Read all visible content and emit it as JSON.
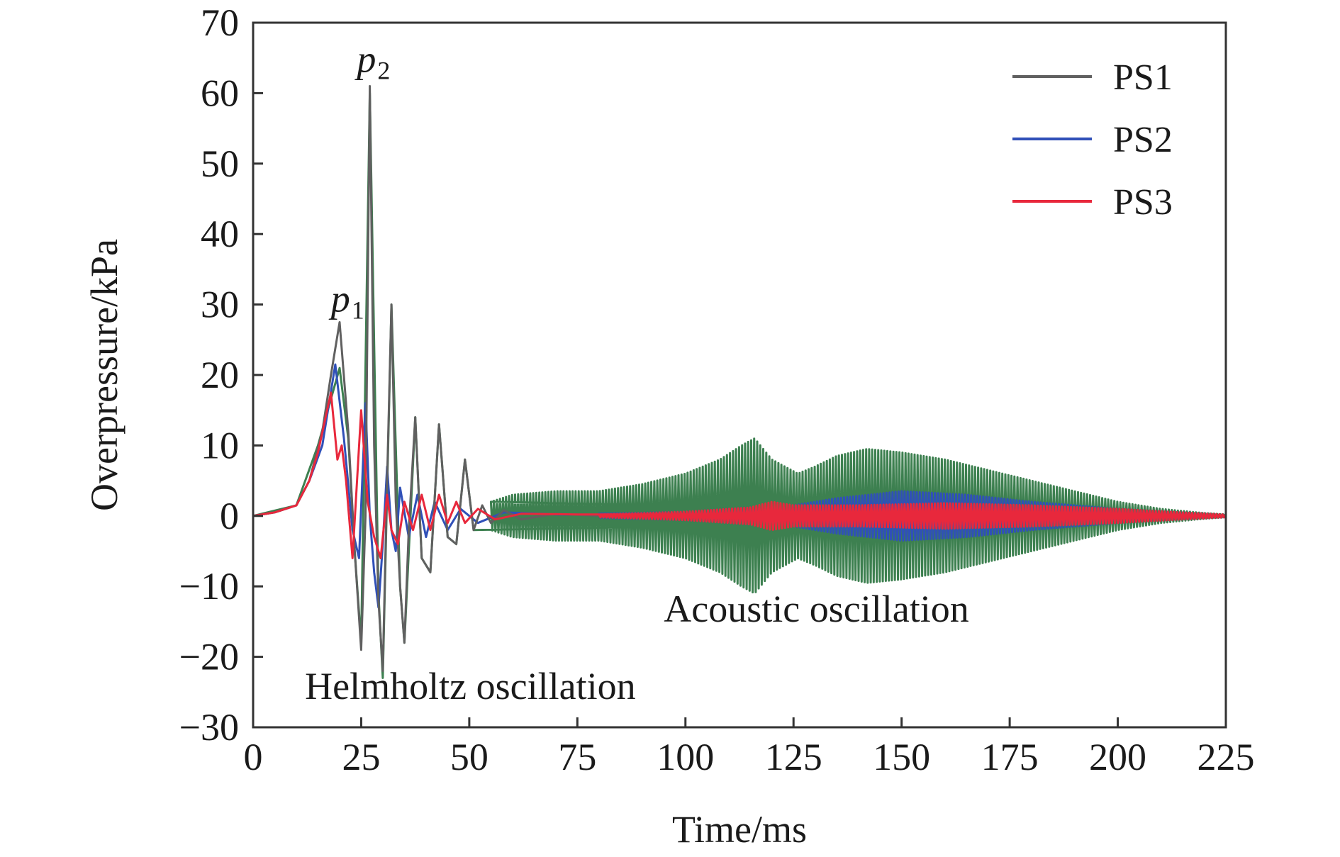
{
  "chart_data": {
    "type": "line",
    "xlabel": "Time/ms",
    "ylabel": "Overpressure/kPa",
    "xlim": [
      0,
      225
    ],
    "ylim": [
      -30,
      70
    ],
    "xticks": [
      0,
      25,
      50,
      75,
      100,
      125,
      150,
      175,
      200,
      225
    ],
    "yticks": [
      -30,
      -20,
      -10,
      0,
      10,
      20,
      30,
      40,
      50,
      60,
      70
    ],
    "xtick_labels": [
      "0",
      "25",
      "50",
      "75",
      "100",
      "125",
      "150",
      "175",
      "200",
      "225"
    ],
    "ytick_labels": [
      "−30",
      "−20",
      "−10",
      "0",
      "10",
      "20",
      "30",
      "40",
      "50",
      "60",
      "70"
    ],
    "legend_position": "top-right",
    "grid": false,
    "series": [
      {
        "name": "PS1",
        "color": "#606060",
        "points": [
          [
            0,
            0
          ],
          [
            5,
            0.5
          ],
          [
            10,
            1.5
          ],
          [
            13,
            5
          ],
          [
            16,
            12
          ],
          [
            18,
            20
          ],
          [
            20,
            27.5
          ],
          [
            22,
            12
          ],
          [
            23.5,
            -5
          ],
          [
            25,
            -19
          ],
          [
            26,
            0
          ],
          [
            27,
            61
          ],
          [
            28,
            10
          ],
          [
            29,
            -12
          ],
          [
            30,
            -22
          ],
          [
            31,
            5
          ],
          [
            32,
            30
          ],
          [
            33,
            2
          ],
          [
            34,
            -10
          ],
          [
            35,
            -18
          ],
          [
            36,
            -2
          ],
          [
            37.5,
            14
          ],
          [
            39,
            -6
          ],
          [
            41,
            -8
          ],
          [
            43,
            13
          ],
          [
            45,
            -3
          ],
          [
            47,
            -4
          ],
          [
            49,
            8
          ],
          [
            51,
            -2
          ],
          [
            53,
            1.5
          ],
          [
            55,
            -1
          ],
          [
            58,
            0.8
          ],
          [
            62,
            -0.5
          ],
          [
            70,
            0.3
          ],
          [
            80,
            0
          ],
          [
            100,
            0
          ],
          [
            225,
            0
          ]
        ]
      },
      {
        "name": "PS2",
        "color": "#3050b8",
        "points": [
          [
            0,
            0
          ],
          [
            5,
            0.5
          ],
          [
            10,
            1.5
          ],
          [
            13,
            5
          ],
          [
            16,
            10
          ],
          [
            19,
            21.5
          ],
          [
            21,
            11
          ],
          [
            23,
            -2
          ],
          [
            24.5,
            -6
          ],
          [
            26,
            16
          ],
          [
            27,
            0
          ],
          [
            28,
            -8
          ],
          [
            29,
            -13
          ],
          [
            30,
            -4
          ],
          [
            31,
            7
          ],
          [
            32,
            -2
          ],
          [
            33,
            -5
          ],
          [
            34,
            4
          ],
          [
            36,
            -3
          ],
          [
            38,
            3
          ],
          [
            40,
            -3
          ],
          [
            42,
            2
          ],
          [
            45,
            -2
          ],
          [
            48,
            1
          ],
          [
            52,
            -1
          ],
          [
            58,
            0.5
          ],
          [
            70,
            0.2
          ],
          [
            100,
            0.1
          ],
          [
            225,
            0
          ]
        ],
        "envelope": [
          [
            80,
            0.3
          ],
          [
            100,
            0.6
          ],
          [
            115,
            1.2
          ],
          [
            125,
            1.5
          ],
          [
            135,
            2.5
          ],
          [
            150,
            3.5
          ],
          [
            165,
            3
          ],
          [
            180,
            2
          ],
          [
            200,
            1
          ],
          [
            215,
            0.5
          ],
          [
            225,
            0.2
          ]
        ]
      },
      {
        "name": "PS3",
        "color": "#e8283c",
        "points": [
          [
            0,
            0
          ],
          [
            5,
            0.5
          ],
          [
            10,
            1.5
          ],
          [
            13,
            5
          ],
          [
            15,
            9
          ],
          [
            18,
            17.5
          ],
          [
            19.5,
            8
          ],
          [
            20.5,
            10
          ],
          [
            21.5,
            5
          ],
          [
            23,
            -6
          ],
          [
            25,
            15
          ],
          [
            26.5,
            2
          ],
          [
            28,
            -3
          ],
          [
            29.5,
            -6
          ],
          [
            31,
            3
          ],
          [
            32,
            -2
          ],
          [
            33.5,
            -4
          ],
          [
            35,
            2
          ],
          [
            37,
            -2
          ],
          [
            39,
            3
          ],
          [
            41,
            -2
          ],
          [
            43,
            3
          ],
          [
            45,
            -1
          ],
          [
            47,
            2
          ],
          [
            49,
            -1
          ],
          [
            52,
            1
          ],
          [
            56,
            -0.5
          ],
          [
            62,
            0.3
          ],
          [
            75,
            0.2
          ],
          [
            100,
            0.2
          ],
          [
            225,
            0
          ]
        ],
        "envelope": [
          [
            80,
            0.2
          ],
          [
            100,
            0.6
          ],
          [
            115,
            1.2
          ],
          [
            120,
            2
          ],
          [
            125,
            1.5
          ],
          [
            140,
            1.5
          ],
          [
            160,
            1.8
          ],
          [
            180,
            1.5
          ],
          [
            200,
            1
          ],
          [
            215,
            0.5
          ],
          [
            225,
            0.2
          ]
        ]
      },
      {
        "name": "",
        "color": "#3d8050",
        "points": [
          [
            0,
            0
          ],
          [
            10,
            1.5
          ],
          [
            15,
            10
          ],
          [
            20,
            21
          ],
          [
            22,
            11
          ],
          [
            23.5,
            -5
          ],
          [
            25,
            -18
          ],
          [
            27,
            60
          ],
          [
            29,
            -11
          ],
          [
            30,
            -23
          ],
          [
            32,
            30
          ],
          [
            34,
            -10
          ],
          [
            35,
            -18
          ],
          [
            37.5,
            14
          ],
          [
            39,
            -6
          ],
          [
            41,
            -8
          ],
          [
            43,
            13
          ],
          [
            45,
            -3
          ],
          [
            47,
            -4
          ],
          [
            49,
            8
          ],
          [
            51,
            -2
          ],
          [
            225,
            0
          ]
        ],
        "envelope": [
          [
            55,
            2
          ],
          [
            60,
            3
          ],
          [
            70,
            3.5
          ],
          [
            80,
            3.5
          ],
          [
            90,
            4.5
          ],
          [
            100,
            6
          ],
          [
            108,
            8
          ],
          [
            113,
            10
          ],
          [
            116,
            11
          ],
          [
            120,
            8
          ],
          [
            126,
            6
          ],
          [
            130,
            7
          ],
          [
            135,
            8.5
          ],
          [
            142,
            9.5
          ],
          [
            150,
            9
          ],
          [
            160,
            8
          ],
          [
            170,
            6.5
          ],
          [
            180,
            5
          ],
          [
            190,
            3.5
          ],
          [
            200,
            2
          ],
          [
            210,
            1
          ],
          [
            220,
            0.4
          ],
          [
            225,
            0.2
          ]
        ]
      }
    ],
    "annotations": [
      {
        "text": "p",
        "subscript": "1",
        "x": 18,
        "y": 29
      },
      {
        "text": "p",
        "subscript": "2",
        "x": 24,
        "y": 63
      },
      {
        "text": "Helmholtz oscillation",
        "x": 12,
        "y": -26
      },
      {
        "text": "Acoustic oscillation",
        "x": 95,
        "y": -15
      }
    ]
  }
}
